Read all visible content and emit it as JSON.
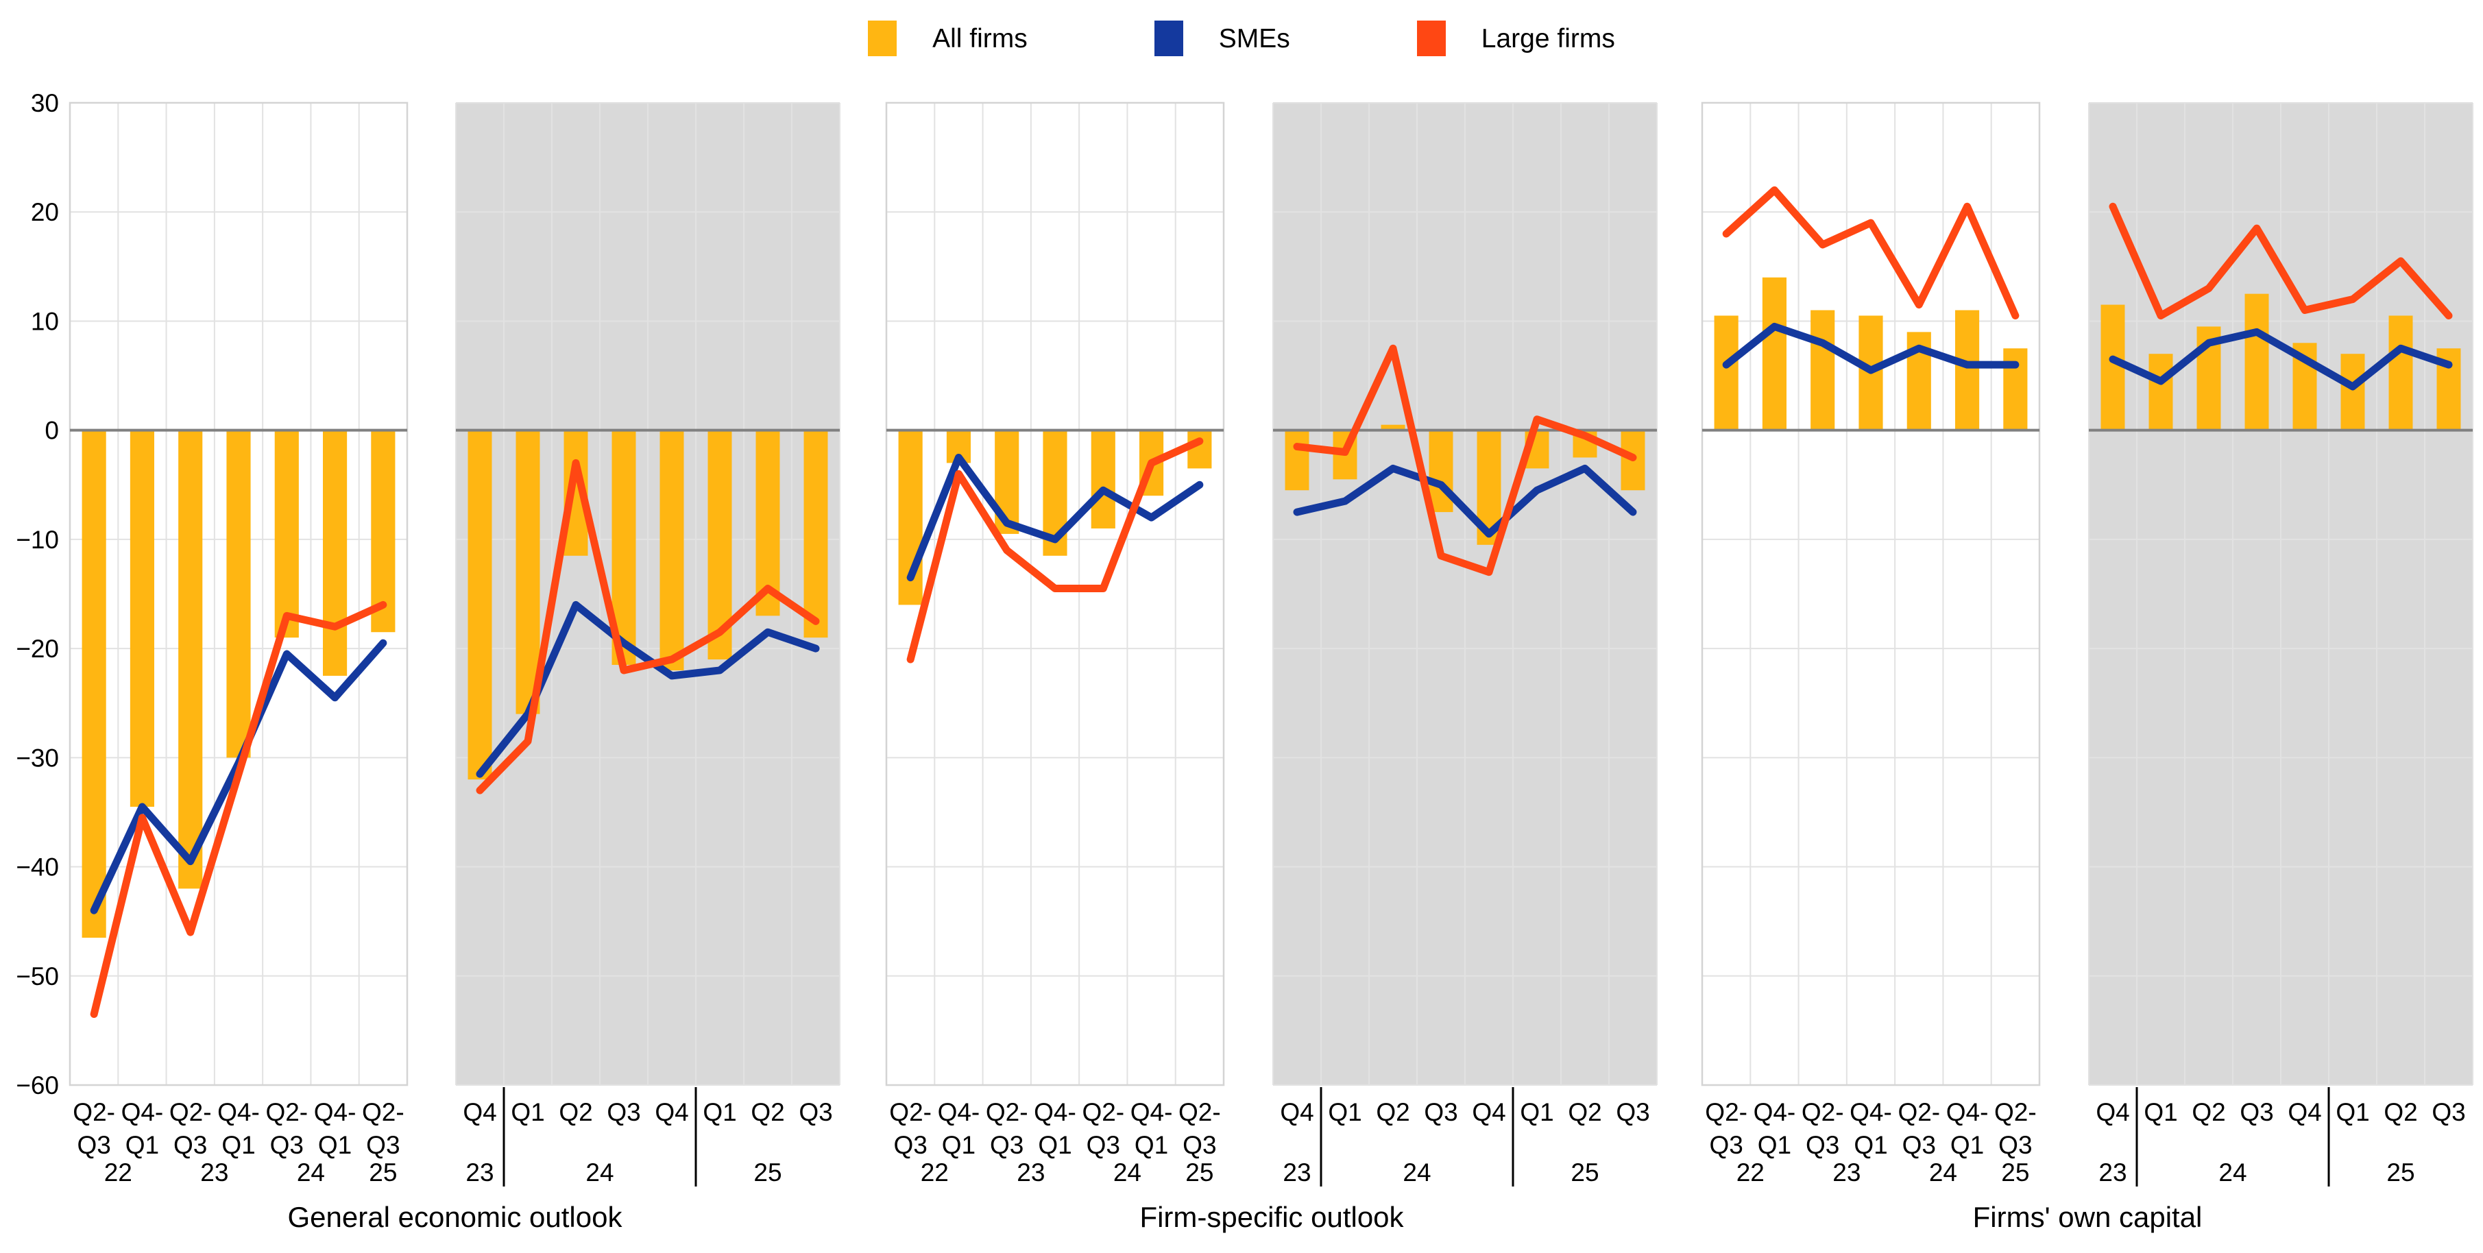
{
  "legend": [
    {
      "label": "All firms",
      "color": "#FFB612",
      "marker": "bar"
    },
    {
      "label": "SMEs",
      "color": "#14399E",
      "marker": "line"
    },
    {
      "label": "Large firms",
      "color": "#FF4713",
      "marker": "line"
    }
  ],
  "colors": {
    "all_firms": "#FFB612",
    "smes": "#14399E",
    "large_firms": "#FF4713",
    "panel_gray": "#D9D9D9",
    "zero_line": "#808080",
    "grid": "#E2E2E2",
    "panel_border": "#D4D4D4",
    "separator": "#000000",
    "text": "#000000"
  },
  "y_axis": {
    "min": -60,
    "max": 30,
    "tick_values": [
      30,
      20,
      10,
      0,
      -10,
      -20,
      -30,
      -40,
      -50,
      -60
    ],
    "tick_labels": [
      "30",
      "20",
      "10",
      "0",
      "−10",
      "−20",
      "−30",
      "−40",
      "−50",
      "−60"
    ]
  },
  "group_titles": [
    "General economic outlook",
    "Firm-specific outlook",
    "Firms' own capital"
  ],
  "chart_data": [
    {
      "type": "bar+line",
      "group": "General economic outlook",
      "background": "white",
      "frequency": "semiannual",
      "cat_line1": [
        "Q2-",
        "Q4-",
        "Q2-",
        "Q4-",
        "Q2-",
        "Q4-",
        "Q2-"
      ],
      "cat_line2": [
        "Q3",
        "Q1",
        "Q3",
        "Q1",
        "Q3",
        "Q1",
        "Q3"
      ],
      "years": [
        {
          "label": "22",
          "pos": 0.5
        },
        {
          "label": "23",
          "pos": 2.5
        },
        {
          "label": "24",
          "pos": 4.5
        },
        {
          "label": "25",
          "pos": 6
        }
      ],
      "separators": [],
      "series": [
        {
          "name": "All firms",
          "type": "bar",
          "values": [
            -46.5,
            -34.5,
            -42,
            -30,
            -19,
            -22.5,
            -18.5
          ]
        },
        {
          "name": "SMEs",
          "type": "line",
          "values": [
            -44,
            -34.5,
            -39.5,
            -30.5,
            -20.5,
            -24.5,
            -19.5
          ]
        },
        {
          "name": "Large firms",
          "type": "line",
          "values": [
            -53.5,
            -35.5,
            -46,
            -31.5,
            -17,
            -18,
            -16
          ]
        }
      ]
    },
    {
      "type": "bar+line",
      "group": "General economic outlook",
      "background": "gray",
      "frequency": "quarterly",
      "cat_line1": [
        "Q4",
        "Q1",
        "Q2",
        "Q3",
        "Q4",
        "Q1",
        "Q2",
        "Q3"
      ],
      "cat_line2": null,
      "years": [
        {
          "label": "23",
          "pos": 0
        },
        {
          "label": "24",
          "pos": 2.5
        },
        {
          "label": "25",
          "pos": 6
        }
      ],
      "separators": [
        1,
        5
      ],
      "series": [
        {
          "name": "All firms",
          "type": "bar",
          "values": [
            -32,
            -26,
            -11.5,
            -21.5,
            -22,
            -21,
            -17,
            -19
          ]
        },
        {
          "name": "SMEs",
          "type": "line",
          "values": [
            -31.5,
            -26,
            -16,
            -19.5,
            -22.5,
            -22,
            -18.5,
            -20
          ]
        },
        {
          "name": "Large firms",
          "type": "line",
          "values": [
            -33,
            -28.5,
            -3,
            -22,
            -21,
            -18.5,
            -14.5,
            -17.5
          ]
        }
      ]
    },
    {
      "type": "bar+line",
      "group": "Firm-specific outlook",
      "background": "white",
      "frequency": "semiannual",
      "cat_line1": [
        "Q2-",
        "Q4-",
        "Q2-",
        "Q4-",
        "Q2-",
        "Q4-",
        "Q2-"
      ],
      "cat_line2": [
        "Q3",
        "Q1",
        "Q3",
        "Q1",
        "Q3",
        "Q1",
        "Q3"
      ],
      "years": [
        {
          "label": "22",
          "pos": 0.5
        },
        {
          "label": "23",
          "pos": 2.5
        },
        {
          "label": "24",
          "pos": 4.5
        },
        {
          "label": "25",
          "pos": 6
        }
      ],
      "separators": [],
      "series": [
        {
          "name": "All firms",
          "type": "bar",
          "values": [
            -16,
            -3,
            -9.5,
            -11.5,
            -9,
            -6,
            -3.5
          ]
        },
        {
          "name": "SMEs",
          "type": "line",
          "values": [
            -13.5,
            -2.5,
            -8.5,
            -10,
            -5.5,
            -8,
            -5
          ]
        },
        {
          "name": "Large firms",
          "type": "line",
          "values": [
            -21,
            -4,
            -11,
            -14.5,
            -14.5,
            -3,
            -1
          ]
        }
      ]
    },
    {
      "type": "bar+line",
      "group": "Firm-specific outlook",
      "background": "gray",
      "frequency": "quarterly",
      "cat_line1": [
        "Q4",
        "Q1",
        "Q2",
        "Q3",
        "Q4",
        "Q1",
        "Q2",
        "Q3"
      ],
      "cat_line2": null,
      "years": [
        {
          "label": "23",
          "pos": 0
        },
        {
          "label": "24",
          "pos": 2.5
        },
        {
          "label": "25",
          "pos": 6
        }
      ],
      "separators": [
        1,
        5
      ],
      "series": [
        {
          "name": "All firms",
          "type": "bar",
          "values": [
            -5.5,
            -4.5,
            0.5,
            -7.5,
            -10.5,
            -3.5,
            -2.5,
            -5.5
          ]
        },
        {
          "name": "SMEs",
          "type": "line",
          "values": [
            -7.5,
            -6.5,
            -3.5,
            -5,
            -9.5,
            -5.5,
            -3.5,
            -7.5
          ]
        },
        {
          "name": "Large firms",
          "type": "line",
          "values": [
            -1.5,
            -2,
            7.5,
            -11.5,
            -13,
            1,
            -0.5,
            -2.5
          ]
        }
      ]
    },
    {
      "type": "bar+line",
      "group": "Firms' own capital",
      "background": "white",
      "frequency": "semiannual",
      "cat_line1": [
        "Q2-",
        "Q4-",
        "Q2-",
        "Q4-",
        "Q2-",
        "Q4-",
        "Q2-"
      ],
      "cat_line2": [
        "Q3",
        "Q1",
        "Q3",
        "Q1",
        "Q3",
        "Q1",
        "Q3"
      ],
      "years": [
        {
          "label": "22",
          "pos": 0.5
        },
        {
          "label": "23",
          "pos": 2.5
        },
        {
          "label": "24",
          "pos": 4.5
        },
        {
          "label": "25",
          "pos": 6
        }
      ],
      "separators": [],
      "series": [
        {
          "name": "All firms",
          "type": "bar",
          "values": [
            10.5,
            14,
            11,
            10.5,
            9,
            11,
            7.5
          ]
        },
        {
          "name": "SMEs",
          "type": "line",
          "values": [
            6,
            9.5,
            8,
            5.5,
            7.5,
            6,
            6
          ]
        },
        {
          "name": "Large firms",
          "type": "line",
          "values": [
            18,
            22,
            17,
            19,
            11.5,
            20.5,
            10.5
          ]
        }
      ]
    },
    {
      "type": "bar+line",
      "group": "Firms' own capital",
      "background": "gray",
      "frequency": "quarterly",
      "cat_line1": [
        "Q4",
        "Q1",
        "Q2",
        "Q3",
        "Q4",
        "Q1",
        "Q2",
        "Q3"
      ],
      "cat_line2": null,
      "years": [
        {
          "label": "23",
          "pos": 0
        },
        {
          "label": "24",
          "pos": 2.5
        },
        {
          "label": "25",
          "pos": 6
        }
      ],
      "separators": [
        1,
        5
      ],
      "series": [
        {
          "name": "All firms",
          "type": "bar",
          "values": [
            11.5,
            7,
            9.5,
            12.5,
            8,
            7,
            10.5,
            7.5
          ]
        },
        {
          "name": "SMEs",
          "type": "line",
          "values": [
            6.5,
            4.5,
            8,
            9,
            6.5,
            4,
            7.5,
            6
          ]
        },
        {
          "name": "Large firms",
          "type": "line",
          "values": [
            20.5,
            10.5,
            13,
            18.5,
            11,
            12,
            15.5,
            10.5
          ]
        }
      ]
    }
  ]
}
